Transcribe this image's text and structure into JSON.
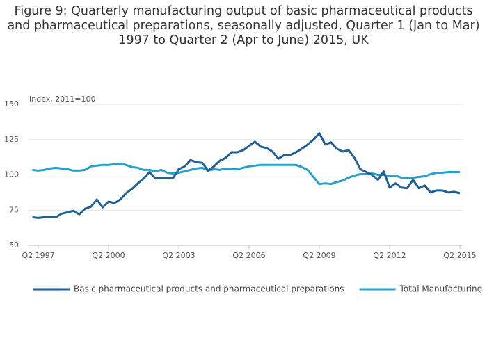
{
  "chart_data": {
    "type": "line",
    "title": "Figure 9: Quarterly manufacturing output of basic pharmaceutical products and pharmaceutical preparations, seasonally adjusted, Quarter 1 (Jan to Mar) 1997 to Quarter 2 (Apr to June) 2015, UK",
    "y_axis_label": "Index, 2011=100",
    "categories": [
      null,
      "Q2 1997",
      null,
      null,
      null,
      null,
      null,
      null,
      null,
      null,
      null,
      null,
      null,
      "Q2 2000",
      null,
      null,
      null,
      null,
      null,
      null,
      null,
      null,
      null,
      null,
      null,
      "Q2 2003",
      null,
      null,
      null,
      null,
      null,
      null,
      null,
      null,
      null,
      null,
      null,
      "Q2 2006",
      null,
      null,
      null,
      null,
      null,
      null,
      null,
      null,
      null,
      null,
      null,
      "Q2 2009",
      null,
      null,
      null,
      null,
      null,
      null,
      null,
      null,
      null,
      null,
      null,
      "Q2 2012",
      null,
      null,
      null,
      null,
      null,
      null,
      null,
      null,
      null,
      null,
      null,
      "Q2 2015"
    ],
    "series": [
      {
        "name": "Basic pharmaceutical products and pharmaceutical preparations",
        "color": "#206095",
        "values": [
          70,
          69.5,
          70,
          70.5,
          70,
          72.5,
          73.5,
          74.5,
          72,
          76,
          77.5,
          82.5,
          77,
          81,
          80,
          82.5,
          87,
          90,
          94,
          97.5,
          102,
          97.5,
          98,
          98,
          97.5,
          104,
          106,
          110.5,
          109,
          108.5,
          103,
          106,
          110,
          112,
          116,
          116,
          117.5,
          120.5,
          123.5,
          120,
          119,
          116.5,
          111.5,
          114,
          114,
          116,
          118.5,
          121.5,
          125,
          129.5,
          121.5,
          123,
          118.5,
          116.5,
          117.5,
          112,
          104,
          102,
          100,
          96.5,
          102.5,
          91,
          94,
          91,
          90.5,
          96.5,
          90.5,
          92.5,
          87.5,
          89,
          89,
          87.5,
          88,
          87
        ]
      },
      {
        "name": "Total Manufacturing",
        "color": "#27a0cc",
        "values": [
          103.5,
          103,
          103.5,
          104.5,
          105,
          104.5,
          104,
          103,
          103,
          103.5,
          106,
          106.5,
          107,
          107,
          107.5,
          108,
          107,
          105.5,
          105,
          103.5,
          103.5,
          102.5,
          103.5,
          101.5,
          101,
          101.5,
          102.5,
          103.5,
          104.5,
          105,
          103,
          104,
          103.5,
          104.5,
          104,
          104,
          105,
          106,
          106.5,
          107,
          107,
          107,
          107,
          107,
          107,
          107,
          105.5,
          103.5,
          98.5,
          93.5,
          94,
          93.5,
          95,
          96,
          98,
          99.5,
          100.5,
          100.5,
          101,
          100,
          100,
          99,
          99.5,
          98,
          97.5,
          98,
          98.5,
          99,
          100.5,
          101.5,
          101.5,
          102,
          102,
          102
        ]
      }
    ],
    "ylim": [
      50,
      150
    ],
    "yticks": [
      50,
      75,
      100,
      125,
      150
    ],
    "grid": true,
    "legend": "bottom"
  }
}
